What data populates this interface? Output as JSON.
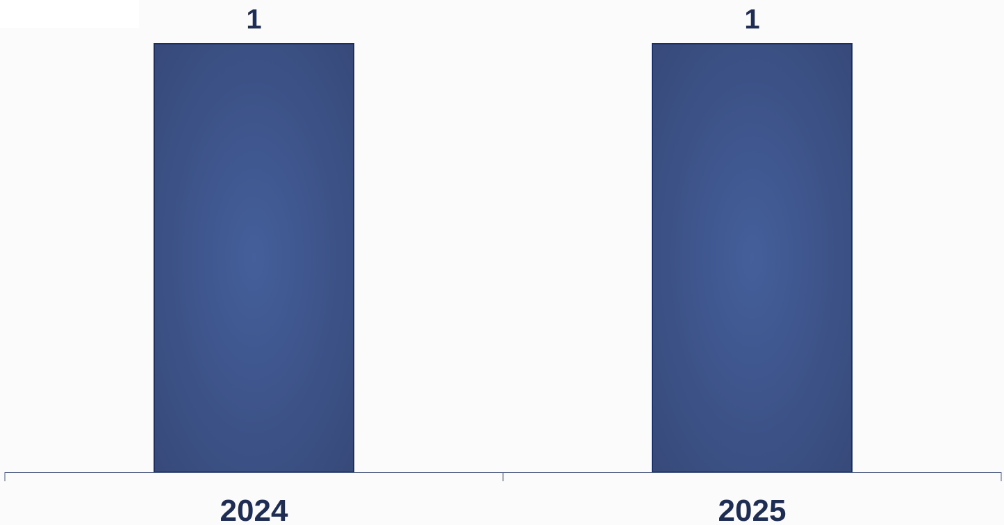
{
  "chart_data": {
    "type": "bar",
    "categories": [
      "2024",
      "2025"
    ],
    "values": [
      1,
      1
    ],
    "data_labels": [
      "1",
      "1"
    ],
    "title": "",
    "xlabel": "",
    "ylabel": "",
    "ylim": [
      0,
      1
    ],
    "grid": false,
    "legend": "none"
  },
  "colors": {
    "bar_center": "#445f9b",
    "bar_edge": "#364877",
    "bar_border": "#1b2f66",
    "axis": "#4a5a80",
    "text": "#1f2d52",
    "background": "#fbfbfb"
  }
}
